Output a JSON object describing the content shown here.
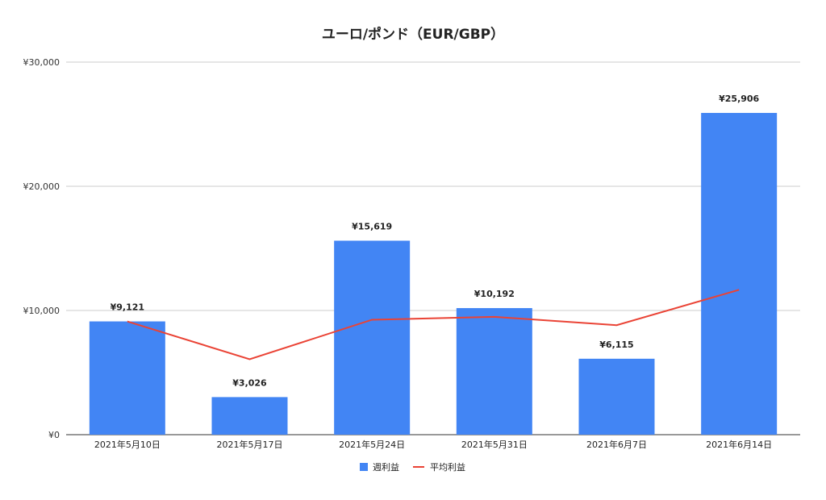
{
  "chart_data": {
    "type": "bar",
    "title": "ユーロ/ポンド（EUR/GBP）",
    "categories": [
      "2021年5月10日",
      "2021年5月17日",
      "2021年5月24日",
      "2021年5月31日",
      "2021年6月7日",
      "2021年6月14日"
    ],
    "series": [
      {
        "name": "週利益",
        "type": "bar",
        "color": "#4285f4",
        "values": [
          9121,
          3026,
          15619,
          10192,
          6115,
          25906
        ],
        "labels": [
          "¥9,121",
          "¥3,026",
          "¥15,619",
          "¥10,192",
          "¥6,115",
          "¥25,906"
        ]
      },
      {
        "name": "平均利益",
        "type": "line",
        "color": "#ea4335",
        "values": [
          9121,
          6074,
          9255,
          9490,
          8815,
          11663
        ]
      }
    ],
    "yticks": [
      0,
      10000,
      20000,
      30000
    ],
    "ytick_labels": [
      "¥0",
      "¥10,000",
      "¥20,000",
      "¥30,000"
    ],
    "ylim": [
      0,
      30000
    ],
    "grid": true,
    "legend_position": "bottom"
  }
}
